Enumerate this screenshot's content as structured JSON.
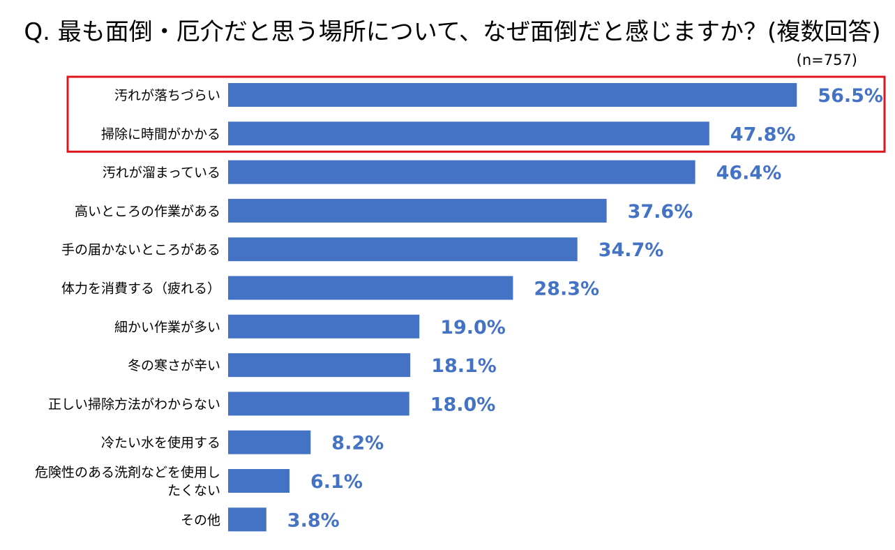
{
  "title": "Q. 最も面倒・厄介だと思う場所について、なぜ面倒だと感じますか？(複数回答)",
  "sample_size": "(n=757)",
  "colors": {
    "bar": "#4472c4",
    "value_label": "#4472c4",
    "highlight_box": "#e0141b"
  },
  "chart_data": {
    "type": "bar",
    "orientation": "horizontal",
    "title": "Q. 最も面倒・厄介だと思う場所について、なぜ面倒だと感じますか？(複数回答)",
    "xlabel": "",
    "ylabel": "",
    "unit": "%",
    "xlim": [
      0,
      60
    ],
    "grid": false,
    "legend": "none",
    "highlighted_categories": [
      "汚れが落ちづらい",
      "掃除に時間がかかる"
    ],
    "categories": [
      [
        "汚れが落ちづらい"
      ],
      [
        "掃除に時間がかかる"
      ],
      [
        "汚れが溜まっている"
      ],
      [
        "高いところの作業がある"
      ],
      [
        "手の届かないところがある"
      ],
      [
        "体力を消費する（疲れる）"
      ],
      [
        "細かい作業が多い"
      ],
      [
        "冬の寒さが辛い"
      ],
      [
        "正しい掃除方法がわからない"
      ],
      [
        "冷たい水を使用する"
      ],
      [
        "危険性のある洗剤などを使用し",
        "たくない"
      ],
      [
        "その他"
      ]
    ],
    "values": [
      56.5,
      47.8,
      46.4,
      37.6,
      34.7,
      28.3,
      19.0,
      18.1,
      18.0,
      8.2,
      6.1,
      3.8
    ],
    "value_labels": [
      "56.5%",
      "47.8%",
      "46.4%",
      "37.6%",
      "34.7%",
      "28.3%",
      "19.0%",
      "18.1%",
      "18.0%",
      "8.2%",
      "6.1%",
      "3.8%"
    ]
  }
}
